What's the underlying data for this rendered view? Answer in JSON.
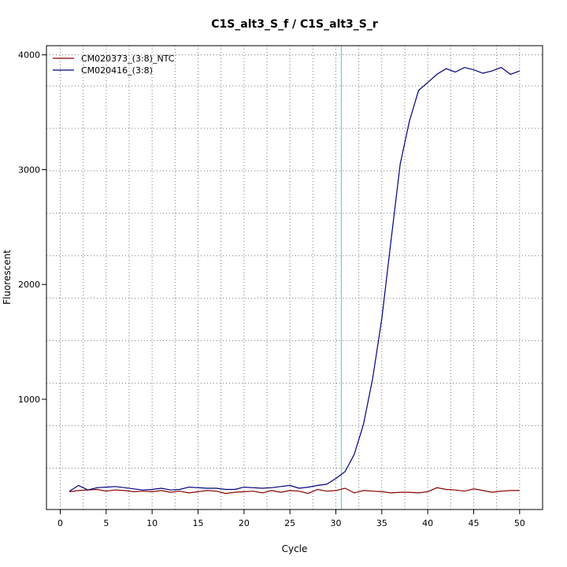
{
  "chart_data": {
    "type": "line",
    "title": "C1S_alt3_S_f / C1S_alt3_S_r",
    "xlabel": "Cycle",
    "ylabel": "Fluorescent",
    "xlim": [
      -1.5,
      52.5
    ],
    "ylim": [
      40,
      4080
    ],
    "x_ticks": [
      0,
      5,
      10,
      15,
      20,
      25,
      30,
      35,
      40,
      45,
      50
    ],
    "x_minor_grid": [
      2.5,
      7.5,
      12.5,
      17.5,
      22.5,
      27.5,
      32.5,
      37.5,
      42.5,
      47.5
    ],
    "y_ticks": [
      1000,
      2000,
      3000,
      4000
    ],
    "y_grid": [
      400,
      770,
      1140,
      1510,
      1880,
      2250,
      2620,
      2990,
      3360,
      3730,
      4000
    ],
    "grid": true,
    "legend_position": "top-left",
    "threshold_line": {
      "x": 30.6,
      "color": "#40e0e0"
    },
    "series": [
      {
        "name": "CM020373_(3:8)_NTC",
        "color": "#8b0000",
        "x": [
          1,
          2,
          3,
          4,
          5,
          6,
          7,
          8,
          9,
          10,
          11,
          12,
          13,
          14,
          15,
          16,
          17,
          18,
          19,
          20,
          21,
          22,
          23,
          24,
          25,
          26,
          27,
          28,
          29,
          30,
          31,
          32,
          33,
          34,
          35,
          36,
          37,
          38,
          39,
          40,
          41,
          42,
          43,
          44,
          45,
          46,
          47,
          48,
          49,
          50
        ],
        "values": [
          195,
          205,
          210,
          215,
          200,
          210,
          205,
          195,
          200,
          195,
          205,
          190,
          200,
          185,
          195,
          205,
          200,
          180,
          190,
          195,
          200,
          185,
          205,
          190,
          205,
          200,
          180,
          215,
          200,
          205,
          225,
          185,
          205,
          200,
          195,
          185,
          190,
          190,
          185,
          195,
          230,
          215,
          210,
          200,
          220,
          205,
          190,
          200,
          205,
          205
        ]
      },
      {
        "name": "CM020416_(3:8)",
        "color": "#000080",
        "x": [
          1,
          2,
          3,
          4,
          5,
          6,
          7,
          8,
          9,
          10,
          11,
          12,
          13,
          14,
          15,
          16,
          17,
          18,
          19,
          20,
          21,
          22,
          23,
          24,
          25,
          26,
          27,
          28,
          29,
          30,
          31,
          32,
          33,
          34,
          35,
          36,
          37,
          38,
          39,
          40,
          41,
          42,
          43,
          44,
          45,
          46,
          47,
          48,
          49,
          50
        ],
        "values": [
          200,
          250,
          210,
          230,
          235,
          240,
          230,
          220,
          210,
          215,
          225,
          210,
          215,
          235,
          230,
          225,
          225,
          215,
          215,
          235,
          230,
          225,
          230,
          240,
          250,
          225,
          235,
          250,
          260,
          310,
          370,
          520,
          780,
          1180,
          1700,
          2380,
          3050,
          3420,
          3690,
          3760,
          3830,
          3880,
          3850,
          3890,
          3870,
          3840,
          3860,
          3890,
          3830,
          3860
        ]
      }
    ]
  }
}
